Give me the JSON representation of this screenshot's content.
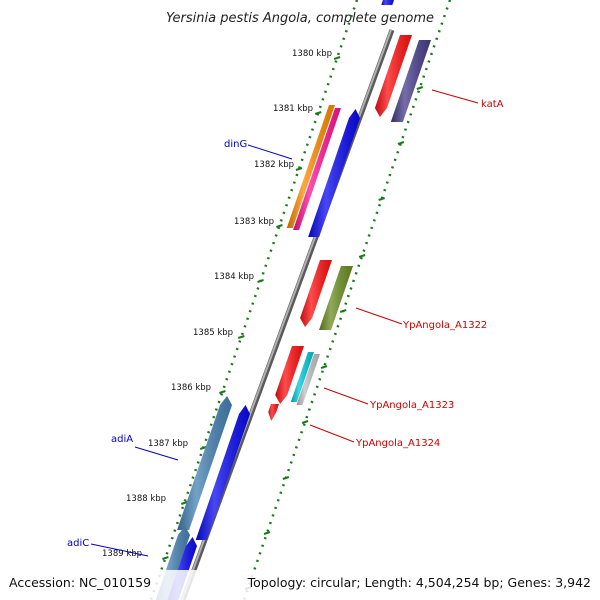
{
  "title": "Yersinia pestis Angola, complete genome",
  "footer": {
    "accession": "Accession: NC_010159",
    "info": "Topology: circular; Length: 4,504,254 bp; Genes: 3,942"
  },
  "colors": {
    "background": "#ffffff",
    "backbone": "#8a8a8a",
    "tick_green": "#1a7a1a",
    "reverse_label": "#0000bb",
    "forward_label": "#cc0000",
    "gene_blue": "#0a0af0",
    "gene_red": "#ff1010",
    "gene_orange": "#ff8c00",
    "gene_magenta": "#ff1493",
    "gene_steelblue": "#4682b4",
    "gene_olive": "#6b8e23",
    "gene_slate": "#483d8b",
    "gene_cyan": "#00c8d8",
    "gene_grey": "#c0c0c0"
  },
  "kbp_labels": [
    "1380 kbp",
    "1381 kbp",
    "1382 kbp",
    "1383 kbp",
    "1384 kbp",
    "1385 kbp",
    "1386 kbp",
    "1387 kbp",
    "1388 kbp",
    "1389 kbp"
  ],
  "gene_labels": {
    "dinG": "dinG",
    "adiA": "adiA",
    "adiC": "adiC",
    "katA": "katA",
    "a1322": "YpAngola_A1322",
    "a1323": "YpAngola_A1323",
    "a1324": "YpAngola_A1324"
  }
}
